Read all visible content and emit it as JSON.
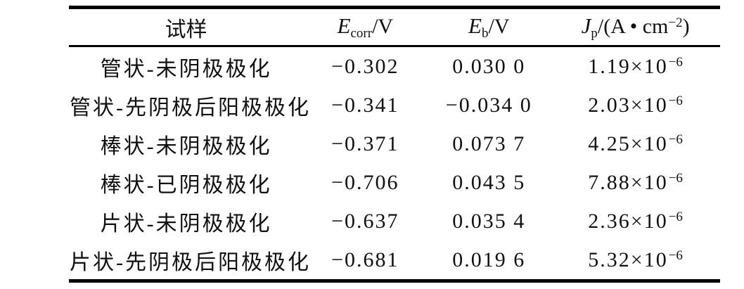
{
  "table": {
    "columns": {
      "sample": {
        "label": "试样"
      },
      "e_corr": {
        "symbol": "E",
        "sub": "corr",
        "unit": "/V"
      },
      "e_b": {
        "symbol": "E",
        "sub": "b",
        "unit": "/V"
      },
      "j_p": {
        "symbol": "J",
        "sub": "p",
        "unit_prefix": "/(A • cm",
        "unit_sup": "−2",
        "unit_suffix": ")"
      }
    },
    "rows": [
      {
        "sample": "管状-未阴极极化",
        "e_corr": "−0.302",
        "e_b": "0.030 0",
        "jp_base": "1.19×10",
        "jp_exp": "−6"
      },
      {
        "sample": "管状-先阴极后阳极极化",
        "e_corr": "−0.341",
        "e_b": "−0.034 0",
        "jp_base": "2.03×10",
        "jp_exp": "−6"
      },
      {
        "sample": "棒状-未阴极极化",
        "e_corr": "−0.371",
        "e_b": "0.073 7",
        "jp_base": "4.25×10",
        "jp_exp": "−6"
      },
      {
        "sample": "棒状-已阴极极化",
        "e_corr": "−0.706",
        "e_b": "0.043 5",
        "jp_base": "7.88×10",
        "jp_exp": "−6"
      },
      {
        "sample": "片状-未阴极极化",
        "e_corr": "−0.637",
        "e_b": "0.035 4",
        "jp_base": "2.36×10",
        "jp_exp": "−6"
      },
      {
        "sample": "片状-先阴极后阳极极化",
        "e_corr": "−0.681",
        "e_b": "0.019 6",
        "jp_base": "5.32×10",
        "jp_exp": "−6"
      }
    ]
  },
  "chart_data": {
    "type": "table",
    "title": "",
    "columns": [
      "试样",
      "E_corr/V",
      "E_b/V",
      "J_p/(A·cm^-2)"
    ],
    "rows": [
      [
        "管状-未阴极极化",
        -0.302,
        0.03,
        "1.19e-6"
      ],
      [
        "管状-先阴极后阳极极化",
        -0.341,
        -0.034,
        "2.03e-6"
      ],
      [
        "棒状-未阴极极化",
        -0.371,
        0.0737,
        "4.25e-6"
      ],
      [
        "棒状-已阴极极化",
        -0.706,
        0.0435,
        "7.88e-6"
      ],
      [
        "片状-未阴极极化",
        -0.637,
        0.0354,
        "2.36e-6"
      ],
      [
        "片状-先阴极后阳极极化",
        -0.681,
        0.0196,
        "5.32e-6"
      ]
    ],
    "colors": {
      "rule": "#000000",
      "text": "#111111",
      "background": "#ffffff"
    }
  }
}
